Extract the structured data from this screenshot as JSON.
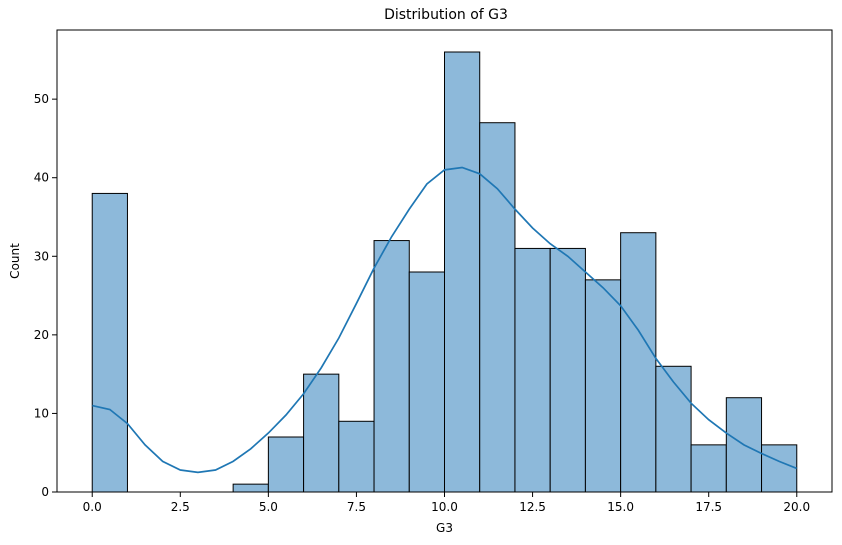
{
  "chart_data": {
    "type": "histogram",
    "title": "Distribution of G3",
    "xlabel": "G3",
    "ylabel": "Count",
    "xlim": [
      -1,
      21
    ],
    "ylim": [
      0,
      58.8
    ],
    "x_ticks": [
      0.0,
      2.5,
      5.0,
      7.5,
      10.0,
      12.5,
      15.0,
      17.5,
      20.0
    ],
    "x_tick_labels": [
      "0.0",
      "2.5",
      "5.0",
      "7.5",
      "10.0",
      "12.5",
      "15.0",
      "17.5",
      "20.0"
    ],
    "y_ticks": [
      0,
      10,
      20,
      30,
      40,
      50
    ],
    "y_tick_labels": [
      "0",
      "10",
      "20",
      "30",
      "40",
      "50"
    ],
    "bins": [
      {
        "x0": 0,
        "x1": 1,
        "count": 38
      },
      {
        "x0": 1,
        "x1": 2,
        "count": 0
      },
      {
        "x0": 2,
        "x1": 3,
        "count": 0
      },
      {
        "x0": 3,
        "x1": 4,
        "count": 0
      },
      {
        "x0": 4,
        "x1": 5,
        "count": 1
      },
      {
        "x0": 5,
        "x1": 6,
        "count": 7
      },
      {
        "x0": 6,
        "x1": 7,
        "count": 15
      },
      {
        "x0": 7,
        "x1": 8,
        "count": 9
      },
      {
        "x0": 8,
        "x1": 9,
        "count": 32
      },
      {
        "x0": 9,
        "x1": 10,
        "count": 28
      },
      {
        "x0": 10,
        "x1": 11,
        "count": 56
      },
      {
        "x0": 11,
        "x1": 12,
        "count": 47
      },
      {
        "x0": 12,
        "x1": 13,
        "count": 31
      },
      {
        "x0": 13,
        "x1": 14,
        "count": 31
      },
      {
        "x0": 14,
        "x1": 15,
        "count": 27
      },
      {
        "x0": 15,
        "x1": 16,
        "count": 33
      },
      {
        "x0": 16,
        "x1": 17,
        "count": 16
      },
      {
        "x0": 17,
        "x1": 18,
        "count": 6
      },
      {
        "x0": 18,
        "x1": 19,
        "count": 12
      },
      {
        "x0": 19,
        "x1": 20,
        "count": 6
      }
    ],
    "kde": {
      "x": [
        0,
        0.5,
        1,
        1.5,
        2,
        2.5,
        3,
        3.5,
        4,
        4.5,
        5,
        5.5,
        6,
        6.5,
        7,
        7.5,
        8,
        8.5,
        9,
        9.5,
        10,
        10.5,
        11,
        11.5,
        12,
        12.5,
        13,
        13.5,
        14,
        14.5,
        15,
        15.5,
        16,
        16.5,
        17,
        17.5,
        18,
        18.5,
        19,
        19.5,
        20
      ],
      "y": [
        11,
        10.5,
        8.7,
        6,
        3.9,
        2.8,
        2.5,
        2.8,
        3.9,
        5.5,
        7.5,
        9.8,
        12.5,
        15.8,
        19.6,
        24,
        28.5,
        32.5,
        36,
        39.2,
        41,
        41.3,
        40.5,
        38.6,
        36,
        33.6,
        31.6,
        30,
        28,
        26,
        23.7,
        20.6,
        17,
        14,
        11.3,
        9.2,
        7.5,
        6,
        4.9,
        3.9,
        3
      ]
    },
    "bar_fill": "#8db9da",
    "bar_edge": "#000000",
    "kde_color": "#1f77b4",
    "grid": false,
    "legend": "none"
  }
}
